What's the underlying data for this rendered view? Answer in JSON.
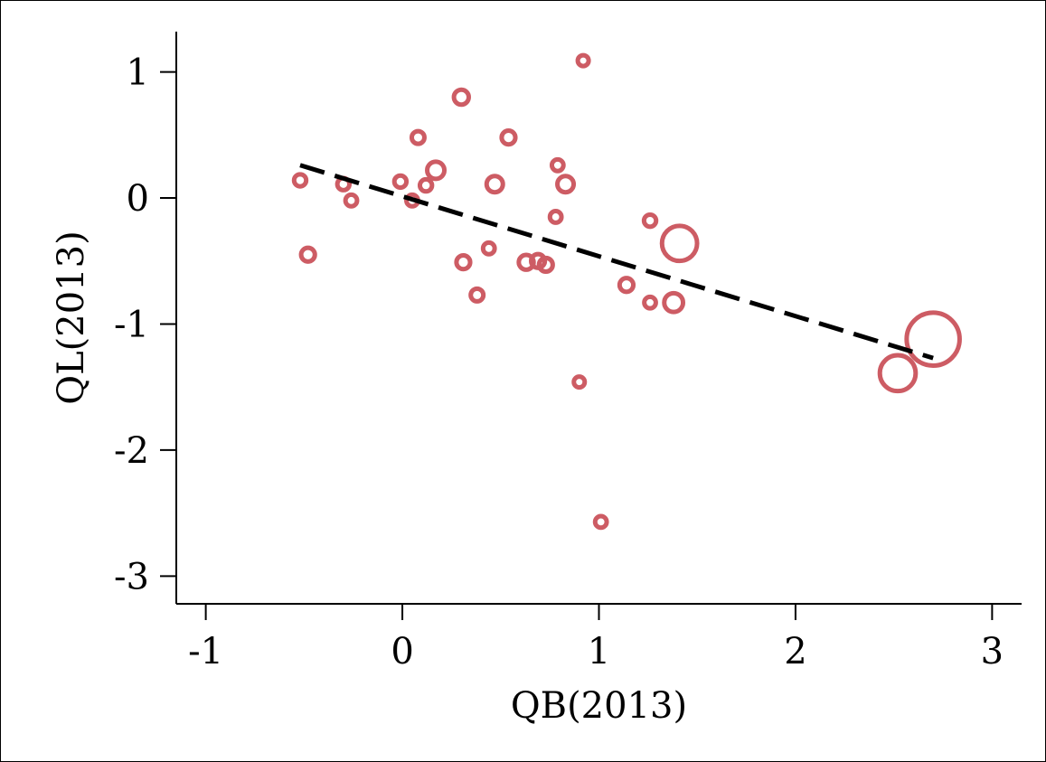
{
  "chart_data": {
    "type": "scatter",
    "xlabel": "QB(2013)",
    "ylabel": "QL(2013)",
    "xlim": [
      -1.15,
      3.15
    ],
    "ylim": [
      -3.22,
      1.32
    ],
    "xticks": [
      -1,
      0,
      1,
      2,
      3
    ],
    "yticks": [
      -3,
      -2,
      -1,
      0,
      1
    ],
    "xtick_labels": [
      "-1",
      "0",
      "1",
      "2",
      "3"
    ],
    "ytick_labels": [
      "-3",
      "-2",
      "-1",
      "0",
      "1"
    ],
    "grid": false,
    "legend": "none",
    "marker_color": "#cd5c64",
    "fit_line_color": "#000000",
    "fit_line_style": "dashed",
    "fit_line": {
      "x": [
        -0.52,
        2.7
      ],
      "y": [
        0.26,
        -1.27
      ]
    },
    "points": [
      {
        "x": -0.52,
        "y": 0.14,
        "size": 1
      },
      {
        "x": -0.48,
        "y": -0.45,
        "size": 1.3
      },
      {
        "x": -0.3,
        "y": 0.11,
        "size": 1
      },
      {
        "x": -0.26,
        "y": -0.02,
        "size": 0.9
      },
      {
        "x": -0.01,
        "y": 0.13,
        "size": 1
      },
      {
        "x": 0.05,
        "y": -0.02,
        "size": 0.9
      },
      {
        "x": 0.08,
        "y": 0.48,
        "size": 1.1
      },
      {
        "x": 0.12,
        "y": 0.1,
        "size": 1
      },
      {
        "x": 0.17,
        "y": 0.22,
        "size": 2
      },
      {
        "x": 0.3,
        "y": 0.8,
        "size": 1.5
      },
      {
        "x": 0.31,
        "y": -0.51,
        "size": 1.3
      },
      {
        "x": 0.38,
        "y": -0.77,
        "size": 1.1
      },
      {
        "x": 0.44,
        "y": -0.4,
        "size": 0.9
      },
      {
        "x": 0.47,
        "y": 0.11,
        "size": 1.8
      },
      {
        "x": 0.54,
        "y": 0.48,
        "size": 1.3
      },
      {
        "x": 0.63,
        "y": -0.51,
        "size": 1.5
      },
      {
        "x": 0.69,
        "y": -0.5,
        "size": 1.3
      },
      {
        "x": 0.73,
        "y": -0.53,
        "size": 1.3
      },
      {
        "x": 0.78,
        "y": -0.15,
        "size": 0.9
      },
      {
        "x": 0.79,
        "y": 0.26,
        "size": 0.9
      },
      {
        "x": 0.83,
        "y": 0.11,
        "size": 1.8
      },
      {
        "x": 0.9,
        "y": -1.46,
        "size": 0.8
      },
      {
        "x": 0.92,
        "y": 1.09,
        "size": 0.8
      },
      {
        "x": 1.01,
        "y": -2.57,
        "size": 0.9
      },
      {
        "x": 1.14,
        "y": -0.69,
        "size": 1.3
      },
      {
        "x": 1.26,
        "y": -0.18,
        "size": 1
      },
      {
        "x": 1.26,
        "y": -0.83,
        "size": 0.9
      },
      {
        "x": 1.38,
        "y": -0.83,
        "size": 2.4
      },
      {
        "x": 1.41,
        "y": -0.36,
        "size": 3.3
      },
      {
        "x": 2.52,
        "y": -1.39,
        "size": 3.4
      },
      {
        "x": 2.7,
        "y": -1.12,
        "size": 5.9
      }
    ]
  }
}
